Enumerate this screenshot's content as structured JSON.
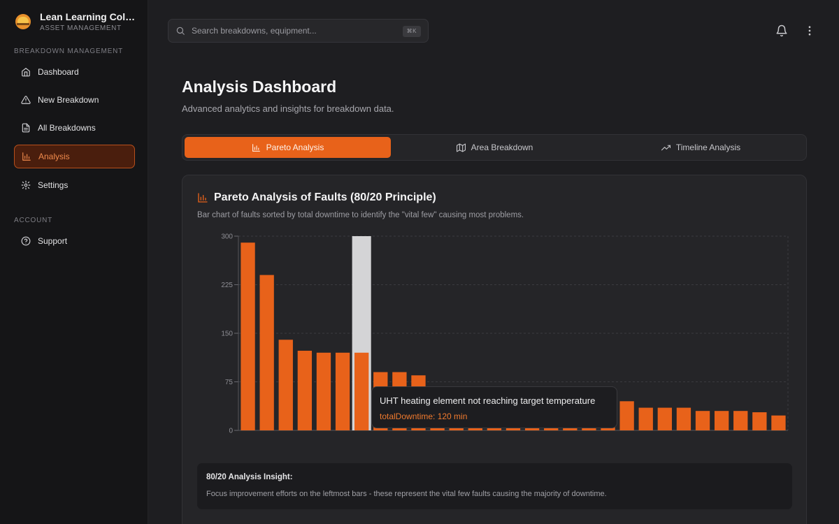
{
  "app": {
    "name": "Lean Learning Colle...",
    "subtitle": "ASSET MANAGEMENT"
  },
  "sidebar": {
    "sections": [
      {
        "label": "BREAKDOWN MANAGEMENT",
        "items": [
          {
            "label": "Dashboard",
            "icon": "home-icon",
            "active": false
          },
          {
            "label": "New Breakdown",
            "icon": "alert-triangle-icon",
            "active": false
          },
          {
            "label": "All Breakdowns",
            "icon": "file-text-icon",
            "active": false
          },
          {
            "label": "Analysis",
            "icon": "bar-chart-icon",
            "active": true
          },
          {
            "label": "Settings",
            "icon": "gear-icon",
            "active": false
          }
        ]
      },
      {
        "label": "ACCOUNT",
        "items": [
          {
            "label": "Support",
            "icon": "help-circle-icon",
            "active": false
          }
        ]
      }
    ]
  },
  "search": {
    "placeholder": "Search breakdowns, equipment...",
    "shortcut": "⌘K"
  },
  "header_icons": [
    "bell-icon",
    "more-vertical-icon"
  ],
  "main": {
    "title": "Analysis Dashboard",
    "subtitle": "Advanced analytics and insights for breakdown data.",
    "tabs": [
      {
        "label": "Pareto Analysis",
        "icon": "bar-chart-icon",
        "active": true
      },
      {
        "label": "Area Breakdown",
        "icon": "map-icon",
        "active": false
      },
      {
        "label": "Timeline Analysis",
        "icon": "trending-up-icon",
        "active": false
      }
    ],
    "card": {
      "title": "Pareto Analysis of Faults (80/20 Principle)",
      "description": "Bar chart of faults sorted by total downtime to identify the \"vital few\" causing most problems."
    },
    "tooltip": {
      "title": "UHT heating element not reaching target temperature",
      "value": "totalDowntime: 120 min"
    },
    "insight": {
      "title": "80/20 Analysis Insight:",
      "text": "Focus improvement efforts on the leftmost bars - these represent the vital few faults causing the majority of downtime."
    }
  },
  "colors": {
    "accent": "#e8621a",
    "bar": "#e8621a",
    "hover_band": "#d4d4d6",
    "background": "#1e1e21",
    "sidebar": "#151517",
    "card": "#252528"
  },
  "chart_data": {
    "type": "bar",
    "ylim": [
      0,
      300
    ],
    "yticks": [
      0,
      75,
      150,
      225,
      300
    ],
    "grid": true,
    "highlighted_index": 6,
    "values": [
      290,
      240,
      140,
      123,
      120,
      120,
      120,
      90,
      90,
      85,
      5,
      5,
      5,
      5,
      5,
      5,
      5,
      5,
      5,
      5,
      45,
      35,
      35,
      35,
      30,
      30,
      30,
      28,
      23
    ]
  }
}
